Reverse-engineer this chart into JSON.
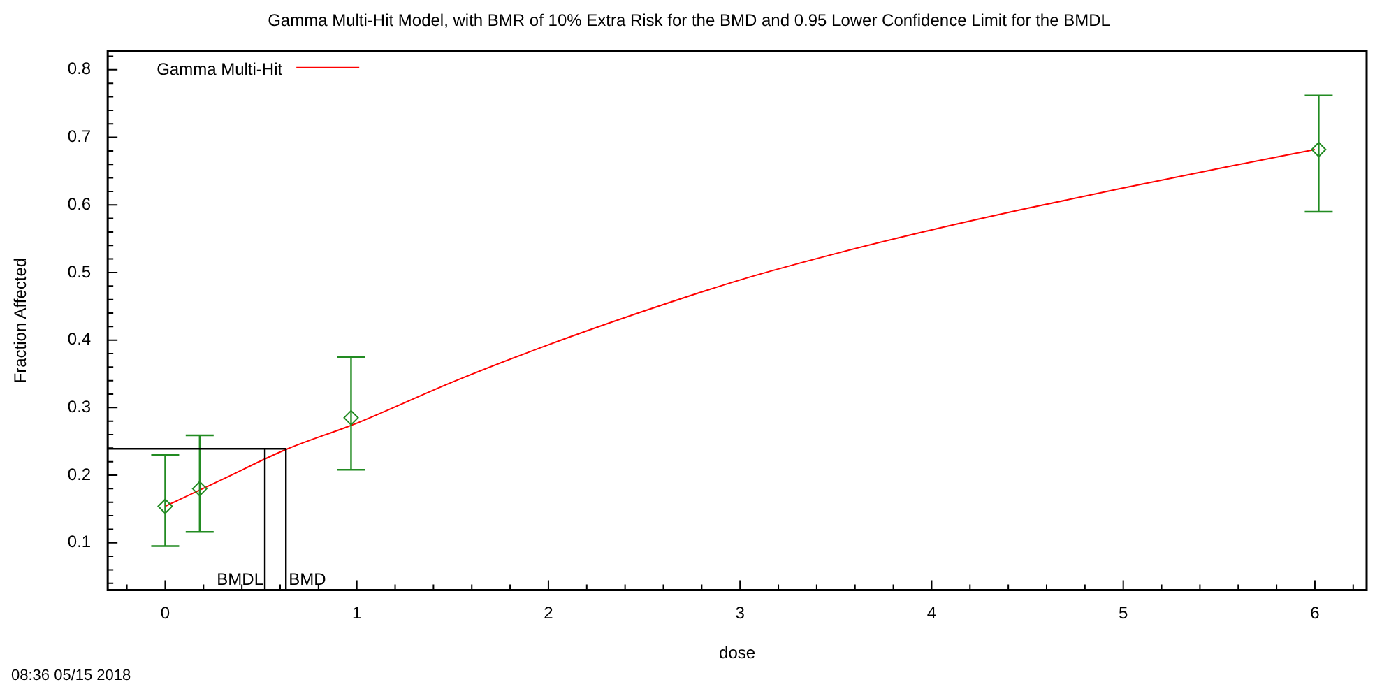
{
  "chart_data": {
    "type": "scatter",
    "title": "Gamma Multi-Hit Model, with BMR of 10% Extra Risk for the BMD and 0.95 Lower Confidence Limit for the BMDL",
    "xlabel": "dose",
    "ylabel": "Fraction Affected",
    "annotations": [
      "08:36 05/15 2018"
    ],
    "series": [
      {
        "type": "scatter",
        "color": "#228b22",
        "x": [
          0,
          0.18,
          0.97,
          6.02
        ],
        "values": [
          0.154,
          0.18,
          0.285,
          0.682
        ],
        "errors": [
          [
            0.095,
            0.23
          ],
          [
            0.116,
            0.259
          ],
          [
            0.208,
            0.375
          ],
          [
            0.59,
            0.762
          ]
        ],
        "marker": "diamond"
      },
      {
        "type": "line",
        "name": "Gamma Multi-Hit",
        "color": "#ff0000",
        "x": [
          0,
          0.3,
          0.63,
          1,
          1.5,
          2,
          2.5,
          3,
          3.5,
          4,
          4.5,
          5,
          5.5,
          6
        ],
        "values": [
          0.154,
          0.194,
          0.238,
          0.277,
          0.338,
          0.393,
          0.443,
          0.489,
          0.528,
          0.563,
          0.595,
          0.625,
          0.654,
          0.682
        ],
        "marker": "none"
      }
    ],
    "ref_lines": [
      {
        "axis": "x",
        "value": 0.52,
        "label": "BMDL",
        "color": "#000000"
      },
      {
        "axis": "x",
        "value": 0.63,
        "label": "BMD",
        "color": "#000000"
      },
      {
        "axis": "y",
        "value": 0.239,
        "color": "#000000"
      }
    ],
    "xlim": [
      -0.3,
      6.27
    ],
    "xticks": [
      0,
      1,
      2,
      3,
      4,
      5,
      6
    ],
    "ylim": [
      0.03,
      0.828
    ],
    "yticks": [
      0.1,
      0.2,
      0.3,
      0.4,
      0.5,
      0.6,
      0.7,
      0.8
    ],
    "grid": false,
    "legend": "top left"
  }
}
